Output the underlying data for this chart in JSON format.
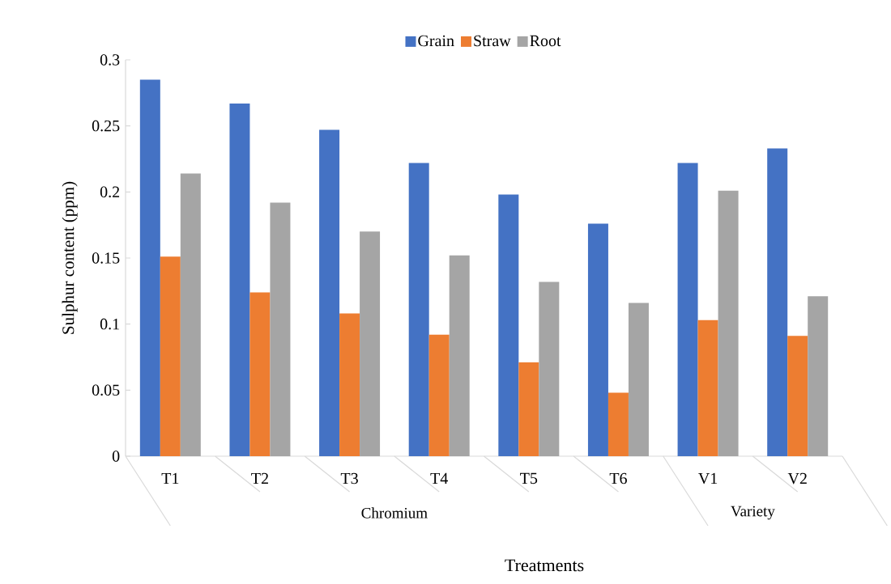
{
  "chart_data": {
    "type": "bar",
    "ylabel": "Sulphur content (ppm)",
    "xlabel": "Treatments",
    "categories": [
      "T1",
      "T2",
      "T3",
      "T4",
      "T5",
      "T6",
      "V1",
      "V2"
    ],
    "series": [
      {
        "name": "Grain",
        "color": "#4472c4",
        "values": [
          0.285,
          0.267,
          0.247,
          0.222,
          0.198,
          0.176,
          0.222,
          0.233
        ]
      },
      {
        "name": "Straw",
        "color": "#ed7d31",
        "values": [
          0.151,
          0.124,
          0.108,
          0.092,
          0.071,
          0.048,
          0.103,
          0.091
        ]
      },
      {
        "name": "Root",
        "color": "#a5a5a5",
        "values": [
          0.214,
          0.192,
          0.17,
          0.152,
          0.132,
          0.116,
          0.201,
          0.121
        ]
      }
    ],
    "annotations": [
      "Chromium",
      "Variety"
    ],
    "ylim": [
      0,
      0.3
    ],
    "yticks": [
      0,
      0.05,
      0.1,
      0.15,
      0.2,
      0.25,
      0.3
    ],
    "grid": false,
    "legend": "top"
  }
}
